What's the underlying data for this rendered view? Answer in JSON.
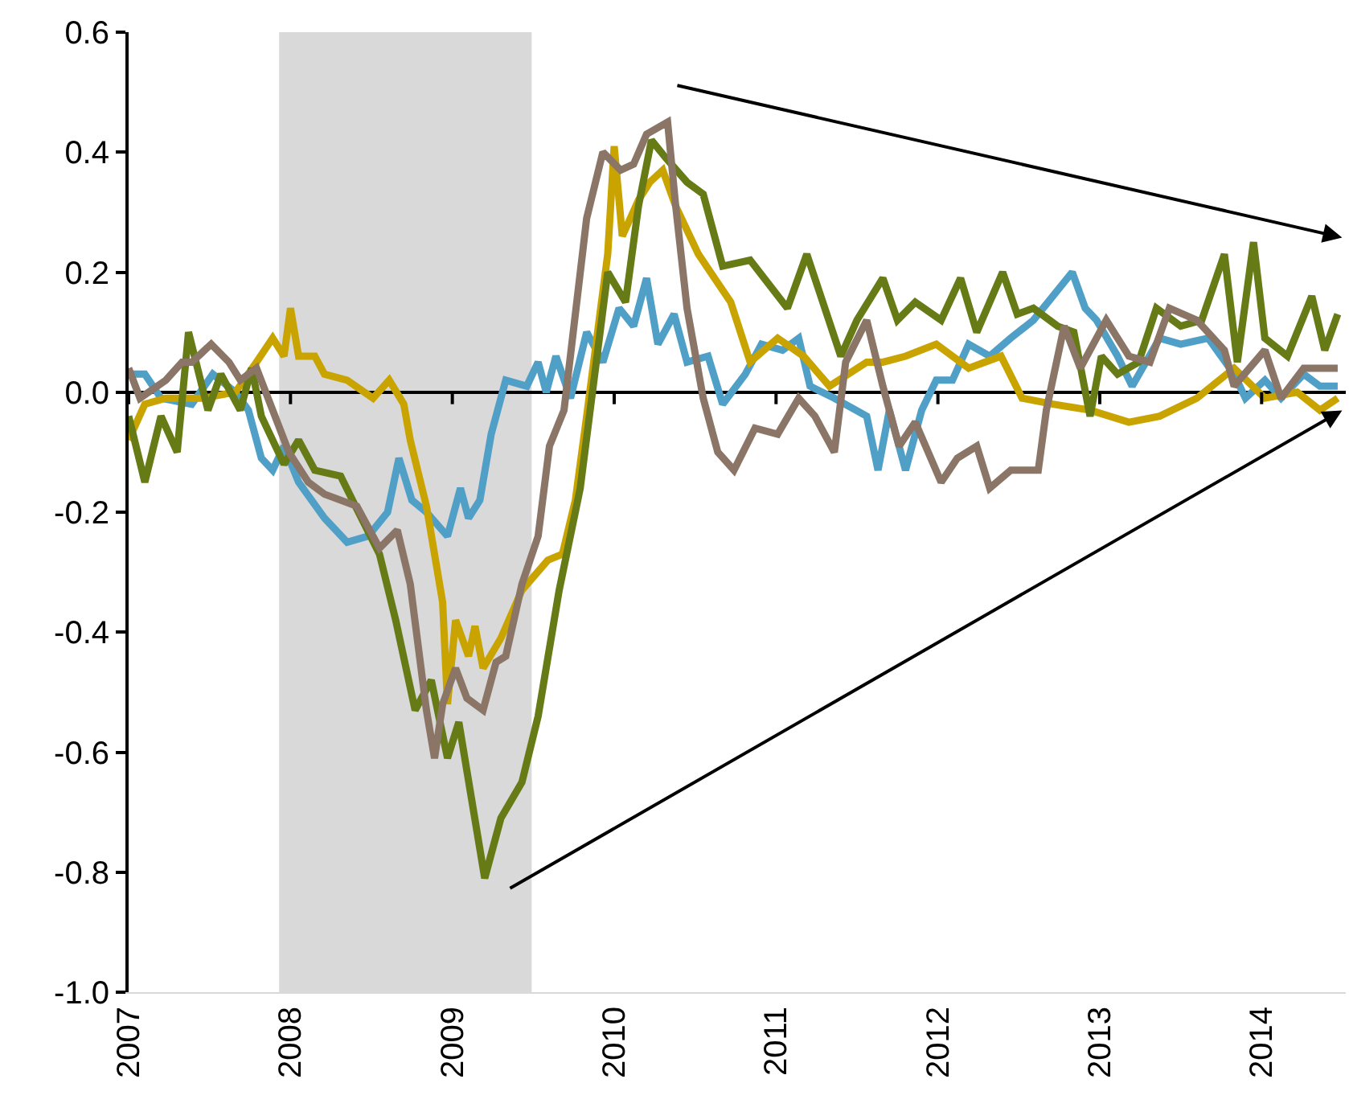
{
  "chart_data": {
    "type": "line",
    "xlim": [
      2007,
      2014.52
    ],
    "xticks": [
      2007,
      2008,
      2009,
      2010,
      2011,
      2012,
      2013,
      2014
    ],
    "ylim": [
      -1.0,
      0.6
    ],
    "yticks": [
      {
        "value": -1.0,
        "label": "-1.0"
      },
      -0.8,
      -0.6,
      -0.4,
      -0.2,
      {
        "value": 0.0,
        "label": "0.0"
      },
      0.2,
      0.4,
      0.6
    ],
    "marker": "none",
    "line_style": "solid",
    "bands": [
      {
        "axis": "x",
        "from": 2007.93,
        "to": 2009.49,
        "label": null,
        "color": "#d9d9d9"
      }
    ],
    "series": [
      {
        "color": "#4f9fc7",
        "x": [
          2007.0,
          2007.1,
          2007.2,
          2007.39,
          2007.52,
          2007.66,
          2007.74,
          2007.82,
          2007.89,
          2007.96,
          2008.05,
          2008.21,
          2008.35,
          2008.48,
          2008.6,
          2008.67,
          2008.75,
          2008.84,
          2008.97,
          2009.05,
          2009.1,
          2009.17,
          2009.24,
          2009.33,
          2009.46,
          2009.53,
          2009.58,
          2009.64,
          2009.73,
          2009.83,
          2009.93,
          2010.03,
          2010.12,
          2010.2,
          2010.27,
          2010.37,
          2010.45,
          2010.58,
          2010.67,
          2010.81,
          2010.91,
          2011.04,
          2011.14,
          2011.21,
          2011.36,
          2011.56,
          2011.63,
          2011.7,
          2011.8,
          2011.9,
          2011.99,
          2012.09,
          2012.19,
          2012.32,
          2012.45,
          2012.59,
          2012.71,
          2012.83,
          2012.91,
          2012.98,
          2013.11,
          2013.2,
          2013.37,
          2013.5,
          2013.67,
          2013.83,
          2013.9,
          2014.02,
          2014.12,
          2014.26,
          2014.36,
          2014.47
        ],
        "values": [
          0.03,
          0.03,
          -0.01,
          -0.02,
          0.03,
          0.0,
          -0.03,
          -0.11,
          -0.13,
          -0.09,
          -0.15,
          -0.21,
          -0.25,
          -0.24,
          -0.2,
          -0.11,
          -0.18,
          -0.2,
          -0.24,
          -0.16,
          -0.21,
          -0.18,
          -0.07,
          0.02,
          0.01,
          0.05,
          0.0,
          0.06,
          -0.01,
          0.1,
          0.05,
          0.14,
          0.11,
          0.19,
          0.08,
          0.13,
          0.05,
          0.06,
          -0.02,
          0.03,
          0.08,
          0.07,
          0.09,
          0.01,
          -0.01,
          -0.04,
          -0.13,
          -0.03,
          -0.13,
          -0.03,
          0.02,
          0.02,
          0.08,
          0.06,
          0.09,
          0.12,
          0.16,
          0.2,
          0.14,
          0.12,
          0.06,
          0.01,
          0.09,
          0.08,
          0.09,
          0.03,
          -0.01,
          0.02,
          -0.01,
          0.03,
          0.01,
          0.01
        ]
      },
      {
        "color": "#c9a400",
        "x": [
          2007.0,
          2007.1,
          2007.23,
          2007.46,
          2007.66,
          2007.79,
          2007.89,
          2007.96,
          2008.0,
          2008.05,
          2008.15,
          2008.21,
          2008.35,
          2008.51,
          2008.61,
          2008.7,
          2008.74,
          2008.84,
          2008.94,
          2008.97,
          2009.02,
          2009.1,
          2009.14,
          2009.19,
          2009.3,
          2009.43,
          2009.59,
          2009.68,
          2009.76,
          2009.83,
          2009.96,
          2010.0,
          2010.05,
          2010.15,
          2010.22,
          2010.3,
          2010.38,
          2010.52,
          2010.62,
          2010.72,
          2010.84,
          2011.01,
          2011.17,
          2011.33,
          2011.56,
          2011.66,
          2011.8,
          2011.99,
          2012.19,
          2012.39,
          2012.52,
          2012.71,
          2012.94,
          2013.18,
          2013.37,
          2013.6,
          2013.83,
          2014.02,
          2014.22,
          2014.36,
          2014.47
        ],
        "values": [
          -0.08,
          -0.02,
          -0.01,
          -0.01,
          0.0,
          0.05,
          0.09,
          0.06,
          0.14,
          0.06,
          0.06,
          0.03,
          0.02,
          -0.01,
          0.02,
          -0.02,
          -0.08,
          -0.19,
          -0.35,
          -0.52,
          -0.38,
          -0.44,
          -0.39,
          -0.46,
          -0.41,
          -0.33,
          -0.28,
          -0.27,
          -0.18,
          -0.04,
          0.23,
          0.41,
          0.26,
          0.32,
          0.35,
          0.37,
          0.31,
          0.23,
          0.19,
          0.15,
          0.05,
          0.09,
          0.06,
          0.01,
          0.05,
          0.05,
          0.06,
          0.08,
          0.04,
          0.06,
          -0.01,
          -0.02,
          -0.03,
          -0.05,
          -0.04,
          -0.01,
          0.04,
          -0.01,
          0.0,
          -0.03,
          -0.01
        ]
      },
      {
        "color": "#667a16",
        "x": [
          2007.0,
          2007.1,
          2007.2,
          2007.3,
          2007.37,
          2007.49,
          2007.57,
          2007.69,
          2007.76,
          2007.82,
          2007.96,
          2008.05,
          2008.15,
          2008.31,
          2008.42,
          2008.55,
          2008.65,
          2008.77,
          2008.87,
          2008.97,
          2009.04,
          2009.2,
          2009.3,
          2009.43,
          2009.53,
          2009.66,
          2009.79,
          2009.96,
          2010.07,
          2010.15,
          2010.23,
          2010.32,
          2010.45,
          2010.55,
          2010.62,
          2010.67,
          2010.84,
          2011.07,
          2011.19,
          2011.4,
          2011.5,
          2011.66,
          2011.75,
          2011.86,
          2012.02,
          2012.14,
          2012.24,
          2012.4,
          2012.49,
          2012.59,
          2012.74,
          2012.84,
          2012.94,
          2013.01,
          2013.11,
          2013.24,
          2013.35,
          2013.5,
          2013.63,
          2013.77,
          2013.85,
          2013.95,
          2014.02,
          2014.16,
          2014.31,
          2014.39,
          2014.47
        ],
        "values": [
          -0.04,
          -0.15,
          -0.04,
          -0.1,
          0.1,
          -0.03,
          0.03,
          -0.03,
          0.04,
          -0.04,
          -0.12,
          -0.08,
          -0.13,
          -0.14,
          -0.2,
          -0.27,
          -0.38,
          -0.53,
          -0.48,
          -0.61,
          -0.55,
          -0.81,
          -0.71,
          -0.65,
          -0.54,
          -0.33,
          -0.16,
          0.2,
          0.15,
          0.31,
          0.42,
          0.39,
          0.35,
          0.33,
          0.26,
          0.21,
          0.22,
          0.14,
          0.23,
          0.06,
          0.12,
          0.19,
          0.12,
          0.15,
          0.12,
          0.19,
          0.1,
          0.2,
          0.13,
          0.14,
          0.11,
          0.1,
          -0.04,
          0.06,
          0.03,
          0.05,
          0.14,
          0.11,
          0.12,
          0.23,
          0.05,
          0.25,
          0.09,
          0.06,
          0.16,
          0.07,
          0.13
        ]
      },
      {
        "color": "#8a7566",
        "x": [
          2007.0,
          2007.07,
          2007.23,
          2007.33,
          2007.39,
          2007.51,
          2007.62,
          2007.69,
          2007.79,
          2007.89,
          2007.99,
          2008.11,
          2008.21,
          2008.41,
          2008.55,
          2008.66,
          2008.74,
          2008.84,
          2008.89,
          2008.94,
          2009.02,
          2009.09,
          2009.19,
          2009.27,
          2009.33,
          2009.43,
          2009.53,
          2009.6,
          2009.69,
          2009.83,
          2009.93,
          2010.04,
          2010.12,
          2010.2,
          2010.33,
          2010.38,
          2010.45,
          2010.55,
          2010.64,
          2010.74,
          2010.87,
          2011.01,
          2011.14,
          2011.24,
          2011.36,
          2011.43,
          2011.56,
          2011.66,
          2011.76,
          2011.86,
          2012.02,
          2012.12,
          2012.24,
          2012.32,
          2012.45,
          2012.62,
          2012.67,
          2012.78,
          2012.88,
          2013.04,
          2013.18,
          2013.31,
          2013.43,
          2013.6,
          2013.77,
          2013.83,
          2014.02,
          2014.12,
          2014.26,
          2014.47
        ],
        "values": [
          0.04,
          -0.01,
          0.02,
          0.05,
          0.05,
          0.08,
          0.05,
          0.02,
          0.04,
          -0.03,
          -0.1,
          -0.15,
          -0.17,
          -0.19,
          -0.26,
          -0.23,
          -0.32,
          -0.53,
          -0.61,
          -0.52,
          -0.46,
          -0.51,
          -0.53,
          -0.45,
          -0.44,
          -0.32,
          -0.24,
          -0.09,
          -0.03,
          0.29,
          0.4,
          0.37,
          0.38,
          0.43,
          0.45,
          0.31,
          0.14,
          -0.01,
          -0.1,
          -0.13,
          -0.06,
          -0.07,
          -0.01,
          -0.04,
          -0.1,
          0.05,
          0.12,
          0.01,
          -0.09,
          -0.05,
          -0.15,
          -0.11,
          -0.09,
          -0.16,
          -0.13,
          -0.13,
          -0.03,
          0.11,
          0.04,
          0.12,
          0.06,
          0.05,
          0.14,
          0.12,
          0.07,
          0.01,
          0.07,
          -0.01,
          0.04,
          0.04
        ]
      }
    ]
  }
}
